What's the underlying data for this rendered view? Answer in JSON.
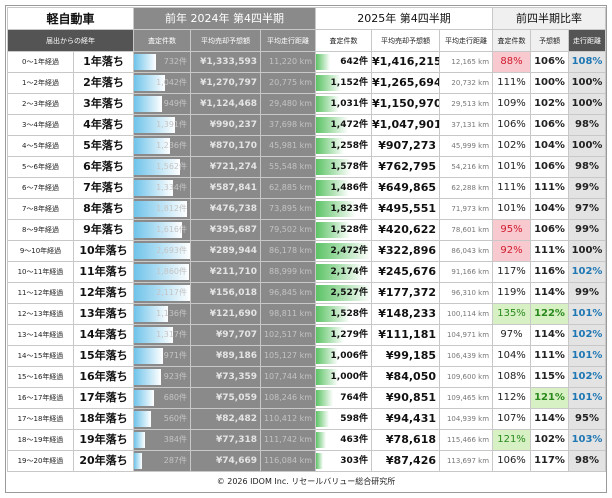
{
  "header": {
    "title": "軽自動車",
    "prev_period": "前年 2024年 第4四半期",
    "cur_period": "2025年 第4四半期",
    "ratio_period": "前四半期比率"
  },
  "columns": {
    "elapsed": "届出からの経年",
    "prev_count": "査定件数",
    "prev_price": "平均売却予想額",
    "prev_km": "平均走行距離",
    "cur_count": "査定件数",
    "cur_price": "平均売却予想額",
    "cur_km": "平均走行距離",
    "ratio_count": "査定件数",
    "ratio_price": "予想額",
    "ratio_km": "走行距離"
  },
  "chart_data": {
    "type": "table",
    "bar_scale_max": {
      "prev_count": 1900,
      "cur_count": 2500
    },
    "rows": [
      {
        "range": "0～1年経過",
        "year": "1年落ち",
        "prev_count": "732件",
        "prev_count_value": 732,
        "prev_price": "¥1,333,593",
        "prev_km": "11,220 km",
        "cur_count": "642件",
        "cur_count_value": 642,
        "cur_price": "¥1,416,215",
        "cur_km": "12,165 km",
        "ratio_count": "88%",
        "ratio_price": "106%",
        "ratio_km": "108%",
        "count_flag": "neg",
        "price_flag": "",
        "km_flag": "blue"
      },
      {
        "range": "1～2年経過",
        "year": "2年落ち",
        "prev_count": "1,042件",
        "prev_count_value": 1042,
        "prev_price": "¥1,270,797",
        "prev_km": "20,775 km",
        "cur_count": "1,152件",
        "cur_count_value": 1152,
        "cur_price": "¥1,265,694",
        "cur_km": "20,732 km",
        "ratio_count": "111%",
        "ratio_price": "100%",
        "ratio_km": "100%",
        "count_flag": "",
        "price_flag": "",
        "km_flag": ""
      },
      {
        "range": "2～3年経過",
        "year": "3年落ち",
        "prev_count": "949件",
        "prev_count_value": 949,
        "prev_price": "¥1,124,468",
        "prev_km": "29,480 km",
        "cur_count": "1,031件",
        "cur_count_value": 1031,
        "cur_price": "¥1,150,970",
        "cur_km": "29,513 km",
        "ratio_count": "109%",
        "ratio_price": "102%",
        "ratio_km": "100%",
        "count_flag": "",
        "price_flag": "",
        "km_flag": ""
      },
      {
        "range": "3～4年経過",
        "year": "4年落ち",
        "prev_count": "1,391件",
        "prev_count_value": 1391,
        "prev_price": "¥990,237",
        "prev_km": "37,698 km",
        "cur_count": "1,472件",
        "cur_count_value": 1472,
        "cur_price": "¥1,047,901",
        "cur_km": "37,131 km",
        "ratio_count": "106%",
        "ratio_price": "106%",
        "ratio_km": "98%",
        "count_flag": "",
        "price_flag": "",
        "km_flag": ""
      },
      {
        "range": "4～5年経過",
        "year": "5年落ち",
        "prev_count": "1,236件",
        "prev_count_value": 1236,
        "prev_price": "¥870,170",
        "prev_km": "45,981 km",
        "cur_count": "1,258件",
        "cur_count_value": 1258,
        "cur_price": "¥907,273",
        "cur_km": "45,999 km",
        "ratio_count": "102%",
        "ratio_price": "104%",
        "ratio_km": "100%",
        "count_flag": "",
        "price_flag": "",
        "km_flag": ""
      },
      {
        "range": "5～6年経過",
        "year": "6年落ち",
        "prev_count": "1,562件",
        "prev_count_value": 1562,
        "prev_price": "¥721,274",
        "prev_km": "55,548 km",
        "cur_count": "1,578件",
        "cur_count_value": 1578,
        "cur_price": "¥762,795",
        "cur_km": "54,216 km",
        "ratio_count": "101%",
        "ratio_price": "106%",
        "ratio_km": "98%",
        "count_flag": "",
        "price_flag": "",
        "km_flag": ""
      },
      {
        "range": "6～7年経過",
        "year": "7年落ち",
        "prev_count": "1,334件",
        "prev_count_value": 1334,
        "prev_price": "¥587,841",
        "prev_km": "62,885 km",
        "cur_count": "1,486件",
        "cur_count_value": 1486,
        "cur_price": "¥649,865",
        "cur_km": "62,288 km",
        "ratio_count": "111%",
        "ratio_price": "111%",
        "ratio_km": "99%",
        "count_flag": "",
        "price_flag": "",
        "km_flag": ""
      },
      {
        "range": "7～8年経過",
        "year": "8年落ち",
        "prev_count": "1,812件",
        "prev_count_value": 1812,
        "prev_price": "¥476,738",
        "prev_km": "73,895 km",
        "cur_count": "1,823件",
        "cur_count_value": 1823,
        "cur_price": "¥495,551",
        "cur_km": "71,973 km",
        "ratio_count": "101%",
        "ratio_price": "104%",
        "ratio_km": "97%",
        "count_flag": "",
        "price_flag": "",
        "km_flag": ""
      },
      {
        "range": "8～9年経過",
        "year": "9年落ち",
        "prev_count": "1,616件",
        "prev_count_value": 1616,
        "prev_price": "¥395,687",
        "prev_km": "79,502 km",
        "cur_count": "1,528件",
        "cur_count_value": 1528,
        "cur_price": "¥420,622",
        "cur_km": "78,601 km",
        "ratio_count": "95%",
        "ratio_price": "106%",
        "ratio_km": "99%",
        "count_flag": "neg",
        "price_flag": "",
        "km_flag": ""
      },
      {
        "range": "9～10年経過",
        "year": "10年落ち",
        "prev_count": "2,693件",
        "prev_count_value": 2693,
        "prev_price": "¥289,944",
        "prev_km": "86,178 km",
        "cur_count": "2,472件",
        "cur_count_value": 2472,
        "cur_price": "¥322,896",
        "cur_km": "86,043 km",
        "ratio_count": "92%",
        "ratio_price": "111%",
        "ratio_km": "100%",
        "count_flag": "neg",
        "price_flag": "",
        "km_flag": ""
      },
      {
        "range": "10～11年経過",
        "year": "11年落ち",
        "prev_count": "1,860件",
        "prev_count_value": 1860,
        "prev_price": "¥211,710",
        "prev_km": "88,999 km",
        "cur_count": "2,174件",
        "cur_count_value": 2174,
        "cur_price": "¥245,676",
        "cur_km": "91,166 km",
        "ratio_count": "117%",
        "ratio_price": "116%",
        "ratio_km": "102%",
        "count_flag": "",
        "price_flag": "",
        "km_flag": "blue"
      },
      {
        "range": "11～12年経過",
        "year": "12年落ち",
        "prev_count": "2,117件",
        "prev_count_value": 2117,
        "prev_price": "¥156,018",
        "prev_km": "96,845 km",
        "cur_count": "2,527件",
        "cur_count_value": 2527,
        "cur_price": "¥177,372",
        "cur_km": "96,310 km",
        "ratio_count": "119%",
        "ratio_price": "114%",
        "ratio_km": "99%",
        "count_flag": "",
        "price_flag": "",
        "km_flag": ""
      },
      {
        "range": "12～13年経過",
        "year": "13年落ち",
        "prev_count": "1,136件",
        "prev_count_value": 1136,
        "prev_price": "¥121,690",
        "prev_km": "98,811 km",
        "cur_count": "1,528件",
        "cur_count_value": 1528,
        "cur_price": "¥148,233",
        "cur_km": "100,114 km",
        "ratio_count": "135%",
        "ratio_price": "122%",
        "ratio_km": "101%",
        "count_flag": "pos",
        "price_flag": "pos",
        "km_flag": "blue"
      },
      {
        "range": "13～14年経過",
        "year": "14年落ち",
        "prev_count": "1,317件",
        "prev_count_value": 1317,
        "prev_price": "¥97,707",
        "prev_km": "102,517 km",
        "cur_count": "1,279件",
        "cur_count_value": 1279,
        "cur_price": "¥111,181",
        "cur_km": "104,971 km",
        "ratio_count": "97%",
        "ratio_price": "114%",
        "ratio_km": "102%",
        "count_flag": "",
        "price_flag": "",
        "km_flag": "blue"
      },
      {
        "range": "14～15年経過",
        "year": "15年落ち",
        "prev_count": "971件",
        "prev_count_value": 971,
        "prev_price": "¥89,186",
        "prev_km": "105,127 km",
        "cur_count": "1,006件",
        "cur_count_value": 1006,
        "cur_price": "¥99,185",
        "cur_km": "106,439 km",
        "ratio_count": "104%",
        "ratio_price": "111%",
        "ratio_km": "101%",
        "count_flag": "",
        "price_flag": "",
        "km_flag": "blue"
      },
      {
        "range": "15～16年経過",
        "year": "16年落ち",
        "prev_count": "923件",
        "prev_count_value": 923,
        "prev_price": "¥73,359",
        "prev_km": "107,744 km",
        "cur_count": "1,000件",
        "cur_count_value": 1000,
        "cur_price": "¥84,050",
        "cur_km": "109,600 km",
        "ratio_count": "108%",
        "ratio_price": "115%",
        "ratio_km": "102%",
        "count_flag": "",
        "price_flag": "",
        "km_flag": "blue"
      },
      {
        "range": "16～17年経過",
        "year": "17年落ち",
        "prev_count": "680件",
        "prev_count_value": 680,
        "prev_price": "¥75,059",
        "prev_km": "108,246 km",
        "cur_count": "764件",
        "cur_count_value": 764,
        "cur_price": "¥90,851",
        "cur_km": "109,465 km",
        "ratio_count": "112%",
        "ratio_price": "121%",
        "ratio_km": "101%",
        "count_flag": "",
        "price_flag": "pos",
        "km_flag": "blue"
      },
      {
        "range": "17～18年経過",
        "year": "18年落ち",
        "prev_count": "560件",
        "prev_count_value": 560,
        "prev_price": "¥82,482",
        "prev_km": "110,412 km",
        "cur_count": "598件",
        "cur_count_value": 598,
        "cur_price": "¥94,431",
        "cur_km": "104,939 km",
        "ratio_count": "107%",
        "ratio_price": "114%",
        "ratio_km": "95%",
        "count_flag": "",
        "price_flag": "",
        "km_flag": ""
      },
      {
        "range": "18～19年経過",
        "year": "19年落ち",
        "prev_count": "384件",
        "prev_count_value": 384,
        "prev_price": "¥77,318",
        "prev_km": "111,742 km",
        "cur_count": "463件",
        "cur_count_value": 463,
        "cur_price": "¥78,618",
        "cur_km": "115,466 km",
        "ratio_count": "121%",
        "ratio_price": "102%",
        "ratio_km": "103%",
        "count_flag": "pos",
        "price_flag": "",
        "km_flag": "blue"
      },
      {
        "range": "19～20年経過",
        "year": "20年落ち",
        "prev_count": "287件",
        "prev_count_value": 287,
        "prev_price": "¥74,669",
        "prev_km": "116,084 km",
        "cur_count": "303件",
        "cur_count_value": 303,
        "cur_price": "¥87,426",
        "cur_km": "113,697 km",
        "ratio_count": "106%",
        "ratio_price": "117%",
        "ratio_km": "98%",
        "count_flag": "",
        "price_flag": "",
        "km_flag": ""
      }
    ]
  },
  "footer": "© 2026 IDOM Inc. リセールバリュー総合研究所",
  "colors": {
    "prev_bar": "#6fc3ea",
    "cur_bar": "#5cc365",
    "neg_bg": "#f8c9cf",
    "neg_text": "#d01b2d",
    "pos_bg": "#d7f0c4",
    "pos_text": "#2a8a1d",
    "blue_text": "#1f77b4"
  }
}
